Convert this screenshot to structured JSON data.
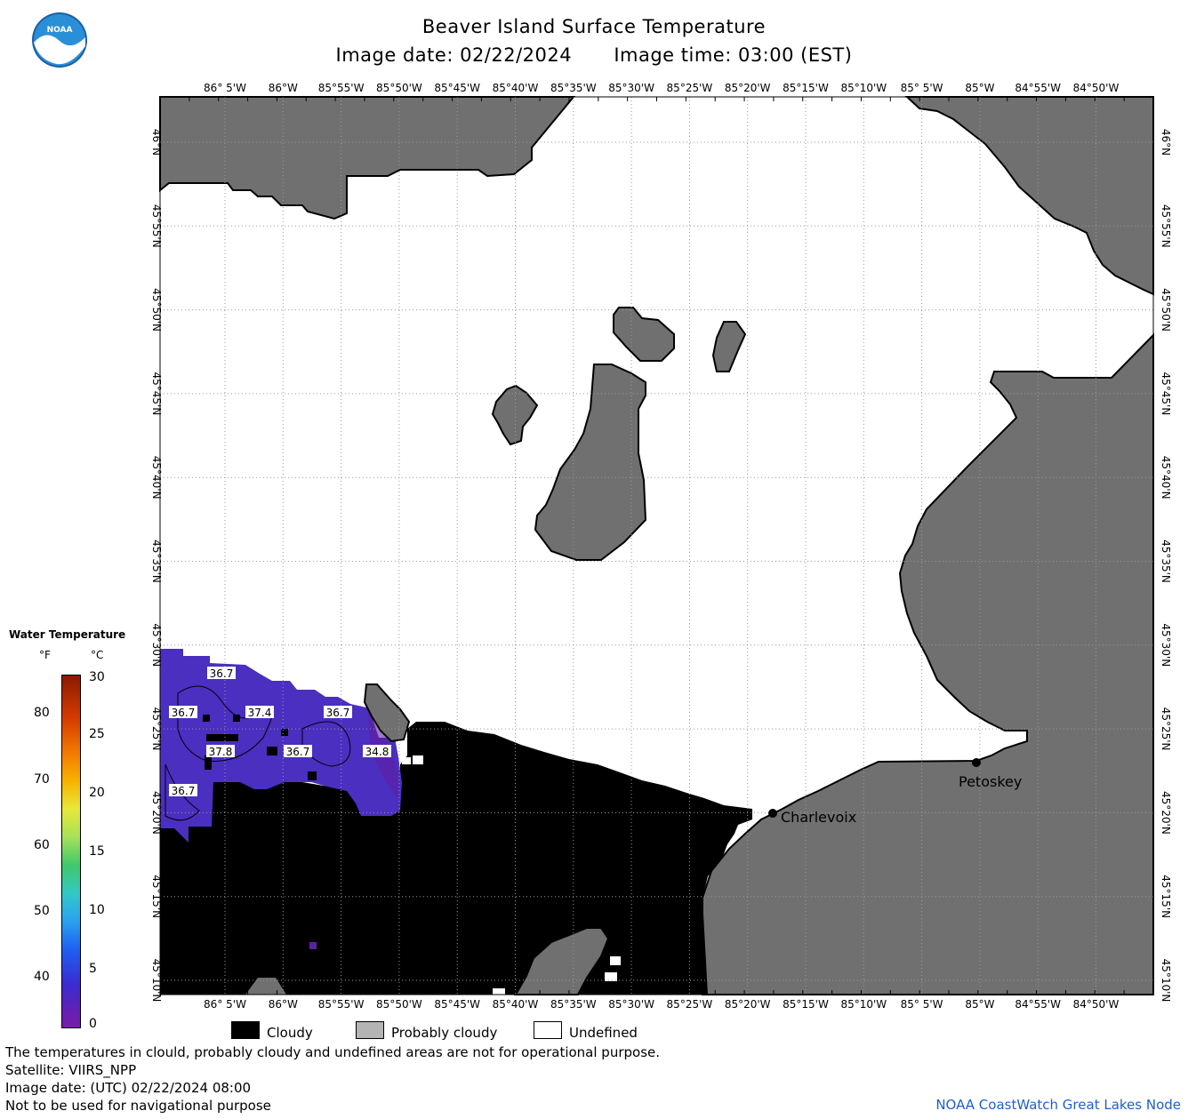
{
  "header": {
    "title": "Beaver Island Surface Temperature",
    "image_date": "Image date: 02/22/2024",
    "image_time": "Image time: 03:00 (EST)"
  },
  "logo": {
    "text": "NOAA"
  },
  "map": {
    "lon_labels": [
      "86° 5'W",
      "86°W",
      "85°55'W",
      "85°50'W",
      "85°45'W",
      "85°40'W",
      "85°35'W",
      "85°30'W",
      "85°25'W",
      "85°20'W",
      "85°15'W",
      "85°10'W",
      "85° 5'W",
      "85°W",
      "84°55'W",
      "84°50'W"
    ],
    "lat_labels": [
      "46°N",
      "45°55'N",
      "45°50'N",
      "45°45'N",
      "45°40'N",
      "45°35'N",
      "45°30'N",
      "45°25'N",
      "45°20'N",
      "45°15'N",
      "45°10'N"
    ],
    "temperature_labels": [
      "36.7",
      "36.7",
      "37.8",
      "37.4",
      "36.7",
      "36.7",
      "34.8",
      "36.7"
    ],
    "cities": [
      {
        "name": "Charlevoix"
      },
      {
        "name": "Petoskey"
      }
    ],
    "colors": {
      "land": "#707070",
      "cloud": "#000000",
      "undefined": "#ffffff",
      "water_purple": "#4a2fc0"
    }
  },
  "legend": {
    "title": "Water Temperature",
    "unit_f": "°F",
    "unit_c": "°C",
    "ticks_f": [
      "80",
      "70",
      "60",
      "50",
      "40"
    ],
    "ticks_c": [
      "30",
      "25",
      "20",
      "15",
      "10",
      "5",
      "0"
    ]
  },
  "key": {
    "cloudy": "Cloudy",
    "probably_cloudy": "Probably cloudy",
    "undefined": "Undefined"
  },
  "footer": {
    "line1": "The temperatures in clould, probably cloudy and undefined areas are not for operational purpose.",
    "line2": "Satellite: VIIRS_NPP",
    "line3": "Image date: (UTC) 02/22/2024  08:00",
    "line4": "Not to be used for navigational purpose",
    "credit": "NOAA CoastWatch Great Lakes Node"
  }
}
